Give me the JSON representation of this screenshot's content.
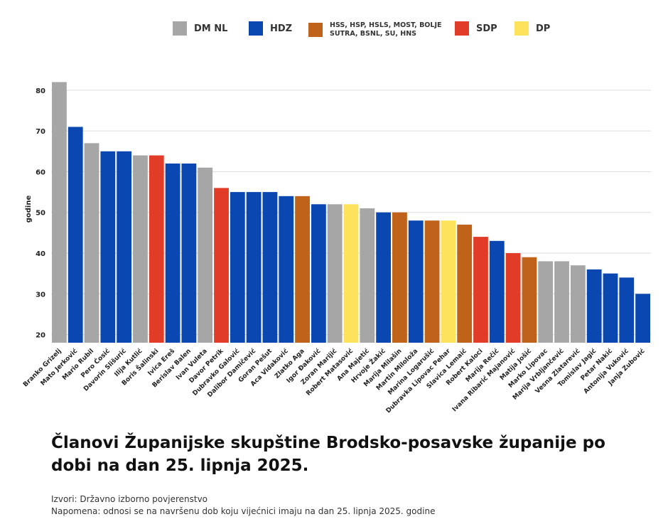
{
  "colors": {
    "DM NL": "#a6a6a6",
    "HDZ": "#0b47b1",
    "HSS, HSP, HSLS, MOST, BOLJE SUTRA, BSNL, SU, HNS": "#c0631a",
    "SDP": "#e03c28",
    "DP": "#fde35b",
    "grid": "#dddddd"
  },
  "chart_data": {
    "type": "bar",
    "title": "Članovi Županijske skupštine Brodsko-posavske županije po dobi na dan 25. lipnja 2025.",
    "xlabel": "",
    "ylabel": "godine",
    "ylim": [
      18,
      84
    ],
    "yticks": [
      20,
      30,
      40,
      50,
      60,
      70,
      80
    ],
    "grid": true,
    "legend_position": "top",
    "legend": [
      {
        "label": "DM NL",
        "color": "#a6a6a6"
      },
      {
        "label": "HDZ",
        "color": "#0b47b1"
      },
      {
        "label": "HSS, HSP, HSLS, MOST, BOLJE SUTRA, BSNL, SU, HNS",
        "color": "#c0631a"
      },
      {
        "label": "SDP",
        "color": "#e03c28"
      },
      {
        "label": "DP",
        "color": "#fde35b"
      }
    ],
    "categories": [
      "Branko Grizelj",
      "Mato Jerković",
      "Mario Rubil",
      "Pero Ćosić",
      "Davorin Slišurić",
      "Ilija Kutlić",
      "Boris Šalinski",
      "Ivica Ereš",
      "Berislav Balen",
      "Ivan Vuleta",
      "Davor Petrik",
      "Dubravko Galović",
      "Dalibor Damičević",
      "Goran Pešut",
      "Aca Vidaković",
      "Zlatko Aga",
      "Igor Đaković",
      "Zoran Marijić",
      "Robert Matasović",
      "Ana Majetić",
      "Hrvoje Žakić",
      "Marija Milašin",
      "Martin Miloloža",
      "Marina Logarušić",
      "Dubravka Lipovac Pehar",
      "Slavica Lemaić",
      "Robert Kaloci",
      "Marija Rečić",
      "Ivana Ribarić Majanović",
      "Matija Jošić",
      "Marko Lipovac",
      "Marija Vrbljančević",
      "Vesna Zlatarević",
      "Tomislav Jagić",
      "Petar Nakić",
      "Antonija Vuković",
      "Janja Zubović"
    ],
    "values": [
      82,
      71,
      67,
      65,
      65,
      64,
      64,
      62,
      62,
      61,
      56,
      55,
      55,
      55,
      54,
      54,
      52,
      52,
      52,
      51,
      50,
      50,
      48,
      48,
      48,
      47,
      44,
      43,
      40,
      39,
      38,
      38,
      37,
      36,
      35,
      34,
      30
    ],
    "parties": [
      "DM NL",
      "HDZ",
      "DM NL",
      "HDZ",
      "HDZ",
      "DM NL",
      "SDP",
      "HDZ",
      "HDZ",
      "DM NL",
      "SDP",
      "HDZ",
      "HDZ",
      "HDZ",
      "HDZ",
      "HSS, HSP, HSLS, MOST, BOLJE SUTRA, BSNL, SU, HNS",
      "HDZ",
      "DM NL",
      "DP",
      "DM NL",
      "HDZ",
      "HSS, HSP, HSLS, MOST, BOLJE SUTRA, BSNL, SU, HNS",
      "HDZ",
      "HSS, HSP, HSLS, MOST, BOLJE SUTRA, BSNL, SU, HNS",
      "DP",
      "HSS, HSP, HSLS, MOST, BOLJE SUTRA, BSNL, SU, HNS",
      "SDP",
      "HDZ",
      "SDP",
      "HSS, HSP, HSLS, MOST, BOLJE SUTRA, BSNL, SU, HNS",
      "DM NL",
      "DM NL",
      "DM NL",
      "HDZ",
      "HDZ",
      "HDZ",
      "HDZ"
    ]
  },
  "footer": {
    "sources": "Izvori: Državno izborno povjerenstvo",
    "note": "Napomena: odnosi se na navršenu dob koju vijećnici imaju na dan 25. lipnja 2025. godine"
  }
}
